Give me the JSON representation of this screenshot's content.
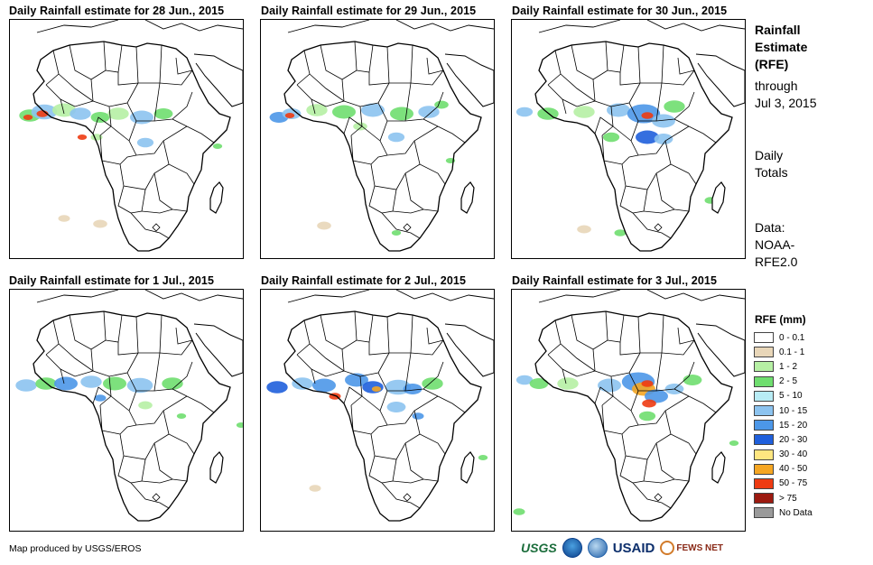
{
  "panels": [
    {
      "title": "Daily Rainfall estimate for 28 Jun., 2015"
    },
    {
      "title": "Daily Rainfall estimate for 29 Jun., 2015"
    },
    {
      "title": "Daily Rainfall estimate for 30 Jun., 2015"
    },
    {
      "title": "Daily Rainfall estimate for 1 Jul., 2015"
    },
    {
      "title": "Daily Rainfall estimate for 2 Jul., 2015"
    },
    {
      "title": "Daily Rainfall estimate for 3 Jul., 2015"
    }
  ],
  "sidebar": {
    "title_line1": "Rainfall",
    "title_line2": "Estimate",
    "title_line3": "(RFE)",
    "through_line1": "through",
    "through_line2": "Jul 3, 2015",
    "daily_line1": "Daily",
    "daily_line2": "Totals",
    "data_line1": "Data:",
    "data_line2": "NOAA-",
    "data_line3": "RFE2.0"
  },
  "legend": {
    "title": "RFE (mm)",
    "items": [
      {
        "label": "0 - 0.1",
        "color": "#ffffff"
      },
      {
        "label": "0.1 - 1",
        "color": "#e8d6b8"
      },
      {
        "label": "1 - 2",
        "color": "#b6f0a4"
      },
      {
        "label": "2 - 5",
        "color": "#6fde6f"
      },
      {
        "label": "5 - 10",
        "color": "#b8ecf5"
      },
      {
        "label": "10 - 15",
        "color": "#8cc3ef"
      },
      {
        "label": "15 - 20",
        "color": "#4c97e8"
      },
      {
        "label": "20 - 30",
        "color": "#1f5fdc"
      },
      {
        "label": "30 - 40",
        "color": "#ffe680"
      },
      {
        "label": "40 - 50",
        "color": "#f5a623"
      },
      {
        "label": "50 - 75",
        "color": "#ee3b12"
      },
      {
        "label": "> 75",
        "color": "#9c1a10"
      },
      {
        "label": "No Data",
        "color": "#9a9a9a"
      }
    ]
  },
  "credit": "Map produced by USGS/EROS",
  "logos": {
    "usgs": "USGS",
    "usaid": "USAID",
    "fews": "FEWS NET"
  }
}
